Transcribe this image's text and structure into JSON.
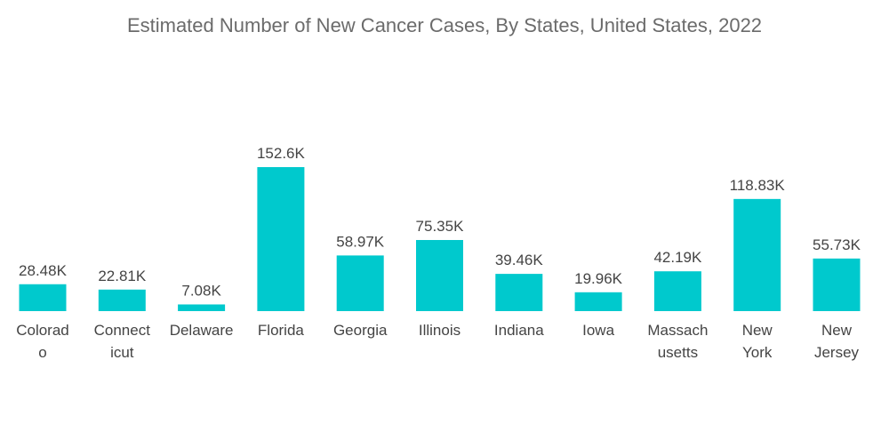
{
  "chart_data": {
    "type": "bar",
    "title": "Estimated Number of New Cancer Cases, By States, United States, 2022",
    "xlabel": "",
    "ylabel": "",
    "categories": [
      [
        "Colorad",
        "o"
      ],
      [
        "Connect",
        "icut"
      ],
      [
        "Delaware"
      ],
      [
        "Florida"
      ],
      [
        "Georgia"
      ],
      [
        "Illinois"
      ],
      [
        "Indiana"
      ],
      [
        "Iowa"
      ],
      [
        "Massach",
        "usetts"
      ],
      [
        "New",
        "York"
      ],
      [
        "New",
        "Jersey"
      ]
    ],
    "values": [
      28.48,
      22.81,
      7.08,
      152.6,
      58.97,
      75.35,
      39.46,
      19.96,
      42.19,
      118.83,
      55.73
    ],
    "value_labels": [
      "28.48K",
      "22.81K",
      "7.08K",
      "152.6K",
      "58.97K",
      "75.35K",
      "39.46K",
      "19.96K",
      "42.19K",
      "118.83K",
      "55.73K"
    ],
    "unit": "K",
    "ylim": [
      0,
      152.6
    ],
    "grid": false,
    "legend": "none",
    "bar_color": "#00c9cd"
  }
}
